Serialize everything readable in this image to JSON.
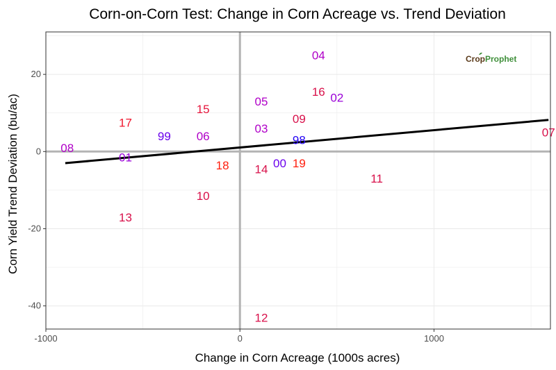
{
  "chart_data": {
    "type": "scatter",
    "title": "Corn-on-Corn Test: Change in Corn Acreage vs. Trend Deviation",
    "xlabel": "Change in Corn Acreage (1000s acres)",
    "ylabel": "Corn Yield Trend Deviation (bu/ac)",
    "xlim": [
      -1000,
      1600
    ],
    "ylim": [
      -46,
      31
    ],
    "x_ticks": [
      -1000,
      0,
      1000
    ],
    "x_tick_labels": [
      "-1000",
      "0",
      "1000"
    ],
    "y_ticks": [
      -40,
      -20,
      0,
      20
    ],
    "y_tick_labels": [
      "-40",
      "-20",
      "0",
      "20"
    ],
    "grid": true,
    "reference_lines": {
      "x": 0,
      "y": 0
    },
    "points": [
      {
        "label": "04",
        "x": 405,
        "y": 25,
        "color": "#b000c8"
      },
      {
        "label": "16",
        "x": 405,
        "y": 15.5,
        "color": "#d8104a"
      },
      {
        "label": "02",
        "x": 500,
        "y": 14,
        "color": "#9a00d8"
      },
      {
        "label": "05",
        "x": 110,
        "y": 13,
        "color": "#b000c8"
      },
      {
        "label": "15",
        "x": -190,
        "y": 11,
        "color": "#e6153c"
      },
      {
        "label": "09",
        "x": 305,
        "y": 8.5,
        "color": "#d8104a"
      },
      {
        "label": "17",
        "x": -590,
        "y": 7.5,
        "color": "#f0162e"
      },
      {
        "label": "03",
        "x": 110,
        "y": 6,
        "color": "#b000c8"
      },
      {
        "label": "07",
        "x": 1590,
        "y": 5,
        "color": "#d8104a"
      },
      {
        "label": "99",
        "x": -390,
        "y": 4,
        "color": "#6a00ec"
      },
      {
        "label": "06",
        "x": -190,
        "y": 4,
        "color": "#b000c8"
      },
      {
        "label": "98",
        "x": 305,
        "y": 3,
        "color": "#2200f4"
      },
      {
        "label": "08",
        "x": -890,
        "y": 1,
        "color": "#b000c8"
      },
      {
        "label": "01",
        "x": -590,
        "y": -1.5,
        "color": "#9a00d8"
      },
      {
        "label": "00",
        "x": 205,
        "y": -3,
        "color": "#6a00ec"
      },
      {
        "label": "19",
        "x": 305,
        "y": -3,
        "color": "#ff1e0e"
      },
      {
        "label": "18",
        "x": -90,
        "y": -3.5,
        "color": "#ff1e0e"
      },
      {
        "label": "14",
        "x": 110,
        "y": -4.5,
        "color": "#d8104a"
      },
      {
        "label": "11",
        "x": 705,
        "y": -7,
        "color": "#d8104a"
      },
      {
        "label": "10",
        "x": -190,
        "y": -11.5,
        "color": "#d8104a"
      },
      {
        "label": "13",
        "x": -590,
        "y": -17,
        "color": "#d8104a"
      },
      {
        "label": "12",
        "x": 110,
        "y": -43,
        "color": "#d8104a"
      }
    ],
    "trend_line": {
      "x": [
        -900,
        1590
      ],
      "y": [
        -3,
        8.2
      ],
      "color": "#000000"
    }
  },
  "logo": {
    "part1": "Crop",
    "part2": "Prophet"
  },
  "colors": {
    "grid": "#ebebeb",
    "reference": "#b3b3b3",
    "axis": "#333333"
  }
}
